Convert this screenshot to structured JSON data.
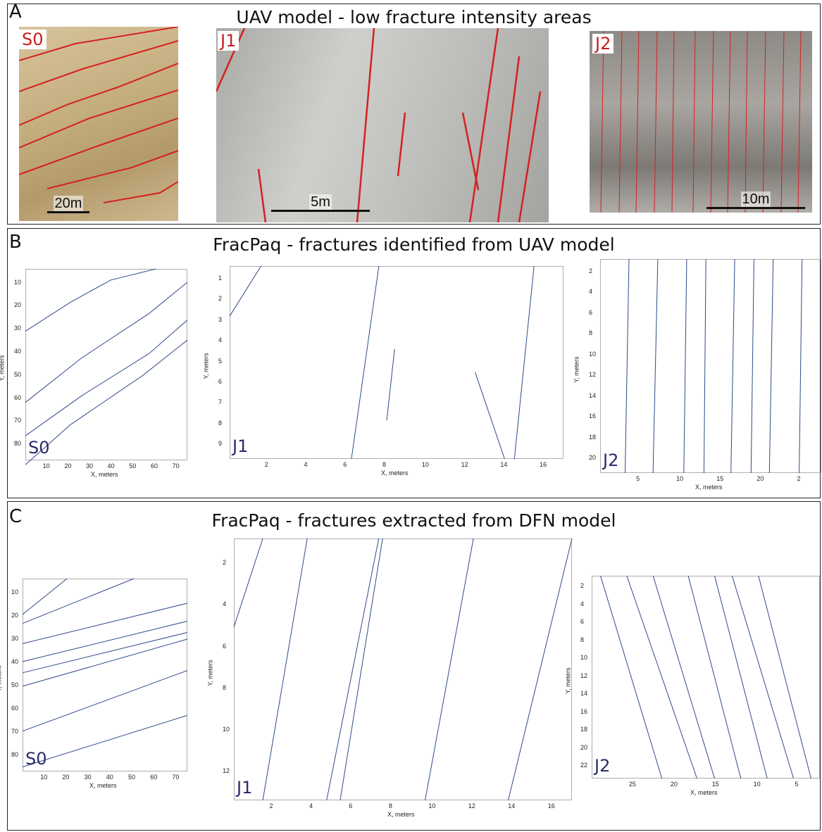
{
  "panels": {
    "A": {
      "letter": "A",
      "title": "UAV model - low fracture intensity areas"
    },
    "B": {
      "letter": "B",
      "title": "FracPaq - fractures identified from UAV model"
    },
    "C": {
      "letter": "C",
      "title": "FracPaq - fractures extracted from DFN model"
    }
  },
  "photos": [
    {
      "tag": "S0",
      "scale": "20m",
      "theme": "tan"
    },
    {
      "tag": "J1",
      "scale": "5m",
      "theme": "grey"
    },
    {
      "tag": "J2",
      "scale": "10m",
      "theme": "greydark"
    }
  ],
  "colors": {
    "fracture_trace": "#d62020",
    "plot_line": "#2f4a8a",
    "label": "#2b2b6b"
  },
  "chart_data": [
    {
      "id": "B-S0",
      "type": "line",
      "label": "S0",
      "xlabel": "X, meters",
      "ylabel": "Y, meters",
      "xlim": [
        0,
        72
      ],
      "ylim": [
        0,
        86
      ],
      "y_reversed": true,
      "x_ticks": [
        "10",
        "20",
        "30",
        "40",
        "50",
        "60",
        "70"
      ],
      "y_ticks": [
        "10",
        "20",
        "30",
        "40",
        "50",
        "60",
        "70",
        "80"
      ],
      "series": [
        [
          [
            0,
            28
          ],
          [
            20,
            15
          ],
          [
            38,
            5
          ],
          [
            58,
            0
          ]
        ],
        [
          [
            0,
            60
          ],
          [
            25,
            40
          ],
          [
            55,
            20
          ],
          [
            72,
            6
          ]
        ],
        [
          [
            0,
            75
          ],
          [
            25,
            57
          ],
          [
            55,
            38
          ],
          [
            72,
            23
          ]
        ],
        [
          [
            0,
            88
          ],
          [
            20,
            70
          ],
          [
            52,
            48
          ],
          [
            72,
            32
          ]
        ]
      ]
    },
    {
      "id": "B-J1",
      "type": "line",
      "label": "J1",
      "xlabel": "X, meters",
      "ylabel": "Y, meters",
      "xlim": [
        0,
        17
      ],
      "ylim": [
        0,
        10
      ],
      "y_reversed": true,
      "x_ticks": [
        "2",
        "4",
        "6",
        "8",
        "10",
        "12",
        "14",
        "16"
      ],
      "y_ticks": [
        "1",
        "2",
        "3",
        "4",
        "5",
        "6",
        "7",
        "8",
        "9"
      ],
      "series": [
        [
          [
            7.6,
            0
          ],
          [
            6.2,
            10
          ]
        ],
        [
          [
            1.6,
            0
          ],
          [
            0,
            2.6
          ]
        ],
        [
          [
            8.4,
            4.3
          ],
          [
            8.0,
            8.0
          ]
        ],
        [
          [
            12.5,
            5.5
          ],
          [
            14.0,
            10
          ]
        ],
        [
          [
            15.5,
            0
          ],
          [
            14.5,
            10
          ]
        ]
      ]
    },
    {
      "id": "B-J2",
      "type": "line",
      "label": "J2",
      "xlabel": "X, meters",
      "ylabel": "Y, meters",
      "xlim": [
        2,
        25
      ],
      "ylim": [
        0,
        21
      ],
      "y_reversed": true,
      "x_ticks": [
        "5",
        "10",
        "15",
        "20",
        "2"
      ],
      "y_ticks": [
        "2",
        "4",
        "6",
        "8",
        "10",
        "12",
        "14",
        "16",
        "18",
        "20"
      ],
      "series": [
        [
          [
            5,
            0
          ],
          [
            4.6,
            21
          ]
        ],
        [
          [
            8,
            0
          ],
          [
            7.5,
            21
          ]
        ],
        [
          [
            11,
            0
          ],
          [
            10.7,
            21
          ]
        ],
        [
          [
            13,
            0
          ],
          [
            12.8,
            21
          ]
        ],
        [
          [
            16,
            0
          ],
          [
            15.6,
            21
          ]
        ],
        [
          [
            18,
            0
          ],
          [
            17.7,
            21
          ]
        ],
        [
          [
            20,
            0
          ],
          [
            19.6,
            21
          ]
        ],
        [
          [
            23,
            0
          ],
          [
            22.7,
            21
          ]
        ]
      ]
    },
    {
      "id": "C-S0",
      "type": "line",
      "label": "S0",
      "xlabel": "X, meters",
      "ylabel": "Y, meters",
      "xlim": [
        0,
        74
      ],
      "ylim": [
        0,
        86
      ],
      "y_reversed": true,
      "x_ticks": [
        "10",
        "20",
        "30",
        "40",
        "50",
        "60",
        "70"
      ],
      "y_ticks": [
        "10",
        "20",
        "30",
        "40",
        "50",
        "60",
        "70",
        "80"
      ],
      "series": [
        [
          [
            0,
            16
          ],
          [
            20,
            0
          ]
        ],
        [
          [
            0,
            20
          ],
          [
            50,
            0
          ]
        ],
        [
          [
            0,
            29
          ],
          [
            74,
            11
          ]
        ],
        [
          [
            0,
            37
          ],
          [
            74,
            19
          ]
        ],
        [
          [
            0,
            42
          ],
          [
            74,
            24
          ]
        ],
        [
          [
            0,
            48
          ],
          [
            74,
            27
          ]
        ],
        [
          [
            0,
            68
          ],
          [
            74,
            41
          ]
        ],
        [
          [
            0,
            84
          ],
          [
            74,
            61
          ]
        ]
      ]
    },
    {
      "id": "C-J1",
      "type": "line",
      "label": "J1",
      "xlabel": "X, meters",
      "ylabel": "Y, meters",
      "xlim": [
        0,
        17.5
      ],
      "ylim": [
        0,
        13.3
      ],
      "y_reversed": true,
      "x_ticks": [
        "2",
        "4",
        "6",
        "8",
        "10",
        "12",
        "14",
        "16"
      ],
      "y_ticks": [
        "2",
        "4",
        "6",
        "8",
        "10",
        "12"
      ],
      "series": [
        [
          [
            1.5,
            0
          ],
          [
            0,
            4.5
          ]
        ],
        [
          [
            1.5,
            13.3
          ],
          [
            3.8,
            0
          ]
        ],
        [
          [
            4.8,
            13.3
          ],
          [
            7.5,
            0
          ]
        ],
        [
          [
            5.5,
            13.3
          ],
          [
            7.7,
            0
          ]
        ],
        [
          [
            9.9,
            13.3
          ],
          [
            12.4,
            0
          ]
        ],
        [
          [
            14.2,
            13.3
          ],
          [
            17.5,
            0
          ]
        ]
      ]
    },
    {
      "id": "C-J2",
      "type": "line",
      "label": "J2",
      "xlabel": "X, meters",
      "ylabel": "Y, meters",
      "xlim": [
        26,
        0
      ],
      "ylim": [
        0,
        22
      ],
      "y_reversed": true,
      "x_ticks": [
        "25",
        "20",
        "15",
        "10",
        "5"
      ],
      "y_ticks": [
        "2",
        "4",
        "6",
        "8",
        "10",
        "12",
        "14",
        "16",
        "18",
        "20",
        "22"
      ],
      "series": [
        [
          [
            25,
            0
          ],
          [
            18,
            22
          ]
        ],
        [
          [
            22,
            0
          ],
          [
            14,
            22
          ]
        ],
        [
          [
            19,
            0
          ],
          [
            12,
            22
          ]
        ],
        [
          [
            15,
            0
          ],
          [
            9,
            22
          ]
        ],
        [
          [
            12,
            0
          ],
          [
            6,
            22
          ]
        ],
        [
          [
            10,
            0
          ],
          [
            3,
            22
          ]
        ],
        [
          [
            7,
            0
          ],
          [
            1,
            22
          ]
        ]
      ]
    }
  ]
}
